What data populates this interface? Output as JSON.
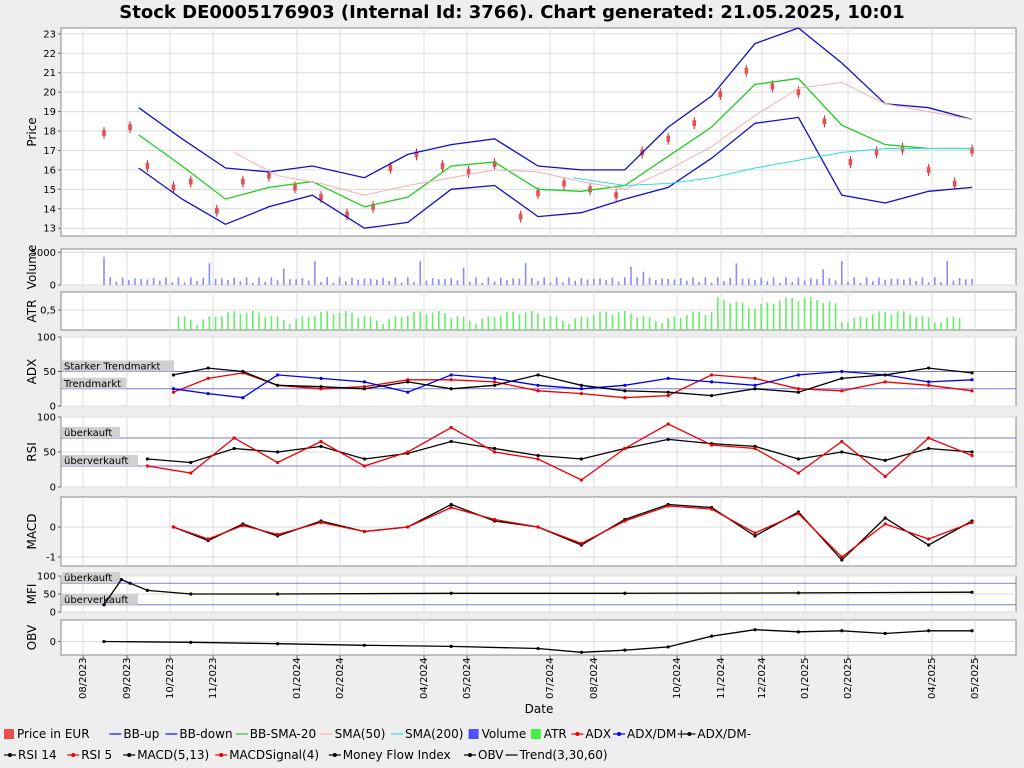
{
  "chart_data": {
    "type": "line",
    "title": "Stock DE0005176903 (Internal Id: 3766). Chart generated: 21.05.2025, 10:01",
    "xlabel": "Date",
    "x_ticks": [
      "08/2023",
      "09/2023",
      "10/2023",
      "11/2023",
      "01/2024",
      "02/2024",
      "04/2024",
      "05/2024",
      "07/2024",
      "08/2024",
      "10/2024",
      "11/2024",
      "12/2024",
      "01/2025",
      "02/2025",
      "04/2025",
      "05/2025"
    ],
    "panels": [
      {
        "key": "price",
        "ylabel": "Price",
        "ylim": [
          12.6,
          23.3
        ],
        "ticks": [
          13,
          14,
          15,
          16,
          17,
          18,
          19,
          20,
          21,
          22,
          23
        ]
      },
      {
        "key": "volume",
        "ylabel": "Volume",
        "ylim": [
          0,
          5500
        ],
        "ticks": [
          0,
          5000
        ]
      },
      {
        "key": "atr",
        "ylabel": "ATR",
        "ylim": [
          0,
          0.95
        ],
        "ticks": [
          0.5
        ],
        "tick_labels": [
          "0,5"
        ]
      },
      {
        "key": "adx",
        "ylabel": "ADX",
        "ylim": [
          0,
          100
        ],
        "ticks": [
          0,
          50,
          100
        ],
        "annotations": [
          {
            "text": "Starker Trendmarkt",
            "y": 50
          },
          {
            "text": "Trendmarkt",
            "y": 25
          }
        ]
      },
      {
        "key": "rsi",
        "ylabel": "RSI",
        "ylim": [
          0,
          100
        ],
        "ticks": [
          0,
          50,
          100
        ],
        "annotations": [
          {
            "text": "überkauft",
            "y": 70
          },
          {
            "text": "überverkauft",
            "y": 30
          }
        ]
      },
      {
        "key": "macd",
        "ylabel": "MACD",
        "ylim": [
          -1.3,
          1.0
        ],
        "ticks": [
          -1,
          0
        ]
      },
      {
        "key": "mfi",
        "ylabel": "MFI",
        "ylim": [
          0,
          100
        ],
        "ticks": [
          0,
          50,
          100
        ],
        "annotations": [
          {
            "text": "überkauft",
            "y": 80
          },
          {
            "text": "überverkauft",
            "y": 20
          }
        ]
      },
      {
        "key": "obv",
        "ylabel": "OBV",
        "ylim": [
          -25000,
          40000
        ],
        "ticks": [
          0
        ]
      }
    ],
    "series": [
      {
        "name": "Price in EUR",
        "panel": "price",
        "x": [
          0,
          3,
          5,
          8,
          10,
          13,
          16,
          19,
          22,
          25,
          28,
          31,
          33,
          36,
          39,
          42,
          45,
          48,
          50,
          53,
          56,
          59,
          62,
          65,
          68,
          71,
          74,
          77,
          80,
          83,
          86,
          89,
          92,
          95,
          98,
          100
        ],
        "values": [
          17.9,
          18.2,
          16.2,
          15.1,
          15.4,
          13.9,
          15.4,
          15.7,
          15.1,
          14.6,
          13.7,
          14.1,
          16.1,
          16.8,
          16.2,
          15.9,
          16.3,
          13.6,
          14.8,
          15.3,
          15.0,
          14.7,
          16.9,
          17.6,
          18.4,
          19.9,
          21.1,
          20.3,
          20.0,
          18.5,
          16.4,
          16.9,
          17.1,
          16.0,
          15.3,
          17.0
        ]
      },
      {
        "name": "BB-up",
        "panel": "price",
        "x": [
          4,
          9,
          14,
          19,
          24,
          30,
          35,
          40,
          45,
          50,
          55,
          60,
          65,
          70,
          75,
          80,
          85,
          90,
          95,
          100
        ],
        "values": [
          19.2,
          17.6,
          16.1,
          15.9,
          16.2,
          15.6,
          16.8,
          17.3,
          17.6,
          16.2,
          16.0,
          16.0,
          18.2,
          19.8,
          22.5,
          23.3,
          21.5,
          19.4,
          19.2,
          18.6
        ]
      },
      {
        "name": "BB-down",
        "panel": "price",
        "x": [
          4,
          9,
          14,
          19,
          24,
          30,
          35,
          40,
          45,
          50,
          55,
          60,
          65,
          70,
          75,
          80,
          85,
          90,
          95,
          100
        ],
        "values": [
          16.1,
          14.5,
          13.2,
          14.1,
          14.7,
          13.0,
          13.3,
          15.0,
          15.2,
          13.6,
          13.8,
          14.5,
          15.1,
          16.6,
          18.4,
          18.7,
          14.7,
          14.3,
          14.9,
          15.1
        ]
      },
      {
        "name": "BB-SMA-20",
        "panel": "price",
        "x": [
          4,
          9,
          14,
          19,
          24,
          30,
          35,
          40,
          45,
          50,
          55,
          60,
          65,
          70,
          75,
          80,
          85,
          90,
          95,
          100
        ],
        "values": [
          17.8,
          16.2,
          14.5,
          15.1,
          15.4,
          14.1,
          14.6,
          16.2,
          16.4,
          15.0,
          14.9,
          15.2,
          16.7,
          18.2,
          20.4,
          20.7,
          18.3,
          17.3,
          17.1,
          17.1
        ]
      },
      {
        "name": "SMA(50)",
        "panel": "price",
        "x": [
          15,
          20,
          25,
          30,
          35,
          40,
          45,
          50,
          55,
          60,
          65,
          70,
          75,
          80,
          85,
          90,
          95,
          100
        ],
        "values": [
          16.9,
          15.7,
          15.3,
          14.7,
          15.2,
          15.6,
          16.0,
          15.9,
          15.4,
          15.0,
          16.0,
          17.2,
          18.8,
          20.2,
          20.5,
          19.4,
          19.0,
          18.6
        ]
      },
      {
        "name": "SMA(200)",
        "panel": "price",
        "x": [
          54,
          60,
          65,
          70,
          75,
          80,
          85,
          90,
          95,
          100
        ],
        "values": [
          15.6,
          15.2,
          15.3,
          15.6,
          16.1,
          16.5,
          16.9,
          17.1,
          17.1,
          17.1
        ]
      },
      {
        "name": "ADX",
        "panel": "adx",
        "x": [
          8,
          12,
          16,
          20,
          25,
          30,
          35,
          40,
          45,
          50,
          55,
          60,
          65,
          70,
          75,
          80,
          85,
          90,
          95,
          100
        ],
        "values": [
          20,
          40,
          48,
          30,
          25,
          28,
          38,
          38,
          35,
          22,
          18,
          12,
          15,
          45,
          40,
          25,
          22,
          35,
          30,
          22
        ]
      },
      {
        "name": "ADX/DM+",
        "panel": "adx",
        "x": [
          8,
          12,
          16,
          20,
          25,
          30,
          35,
          40,
          45,
          50,
          55,
          60,
          65,
          70,
          75,
          80,
          85,
          90,
          95,
          100
        ],
        "values": [
          25,
          18,
          12,
          45,
          40,
          35,
          20,
          45,
          40,
          30,
          25,
          30,
          40,
          35,
          30,
          45,
          50,
          45,
          35,
          38
        ]
      },
      {
        "name": "ADX/DM-",
        "panel": "adx",
        "x": [
          8,
          12,
          16,
          20,
          25,
          30,
          35,
          40,
          45,
          50,
          55,
          60,
          65,
          70,
          75,
          80,
          85,
          90,
          95,
          100
        ],
        "values": [
          45,
          55,
          50,
          30,
          28,
          25,
          35,
          25,
          30,
          45,
          30,
          22,
          20,
          15,
          25,
          20,
          40,
          45,
          55,
          48
        ]
      },
      {
        "name": "RSI 14",
        "panel": "rsi",
        "x": [
          5,
          10,
          15,
          20,
          25,
          30,
          35,
          40,
          45,
          50,
          55,
          60,
          65,
          70,
          75,
          80,
          85,
          90,
          95,
          100
        ],
        "values": [
          40,
          35,
          55,
          50,
          58,
          40,
          48,
          65,
          55,
          45,
          40,
          55,
          68,
          62,
          58,
          40,
          50,
          38,
          55,
          50
        ]
      },
      {
        "name": "RSI 5",
        "panel": "rsi",
        "x": [
          5,
          10,
          15,
          20,
          25,
          30,
          35,
          40,
          45,
          50,
          55,
          60,
          65,
          70,
          75,
          80,
          85,
          90,
          95,
          100
        ],
        "values": [
          30,
          20,
          70,
          35,
          65,
          30,
          50,
          85,
          50,
          40,
          10,
          55,
          90,
          60,
          55,
          20,
          65,
          15,
          70,
          45
        ]
      },
      {
        "name": "MACD(5,13)",
        "panel": "macd",
        "x": [
          8,
          12,
          16,
          20,
          25,
          30,
          35,
          40,
          45,
          50,
          55,
          60,
          65,
          70,
          75,
          80,
          85,
          90,
          95,
          100
        ],
        "values": [
          0.0,
          -0.45,
          0.1,
          -0.3,
          0.2,
          -0.15,
          0.0,
          0.75,
          0.2,
          0.0,
          -0.6,
          0.25,
          0.75,
          0.65,
          -0.3,
          0.5,
          -1.1,
          0.3,
          -0.6,
          0.2
        ]
      },
      {
        "name": "MACDSignal(4)",
        "panel": "macd",
        "x": [
          8,
          12,
          16,
          20,
          25,
          30,
          35,
          40,
          45,
          50,
          55,
          60,
          65,
          70,
          75,
          80,
          85,
          90,
          95,
          100
        ],
        "values": [
          0.0,
          -0.4,
          0.05,
          -0.25,
          0.15,
          -0.15,
          0.0,
          0.65,
          0.25,
          0.0,
          -0.55,
          0.2,
          0.7,
          0.6,
          -0.2,
          0.45,
          -1.0,
          0.1,
          -0.4,
          0.15
        ]
      },
      {
        "name": "Money Flow Index",
        "panel": "mfi",
        "x": [
          0,
          2,
          3,
          5,
          10,
          20,
          40,
          60,
          80,
          100
        ],
        "values": [
          20,
          90,
          80,
          60,
          50,
          50,
          52,
          52,
          53,
          55
        ]
      },
      {
        "name": "OBV",
        "panel": "obv",
        "x": [
          0,
          10,
          20,
          30,
          40,
          50,
          55,
          60,
          65,
          70,
          75,
          80,
          85,
          90,
          95,
          100
        ],
        "values": [
          0,
          -1500,
          -4000,
          -7000,
          -9000,
          -13000,
          -20000,
          -16000,
          -10000,
          10000,
          22000,
          18000,
          20000,
          15000,
          20000,
          20000
        ]
      }
    ],
    "volume_bars_present": true,
    "atr_bars_present": true,
    "legend_position": "bottom",
    "legend": [
      {
        "label": "Price in EUR",
        "color": "#e85050",
        "kind": "box"
      },
      {
        "label": "BB-up",
        "color": "#1010c8",
        "kind": "line"
      },
      {
        "label": "BB-down",
        "color": "#1010c8",
        "kind": "line"
      },
      {
        "label": "BB-SMA-20",
        "color": "#22cc22",
        "kind": "line"
      },
      {
        "label": "SMA(50)",
        "color": "#f0b0b0",
        "kind": "line"
      },
      {
        "label": "SMA(200)",
        "color": "#30dddd",
        "kind": "line"
      },
      {
        "label": "Volume",
        "color": "#5050ff",
        "kind": "box"
      },
      {
        "label": "ATR",
        "color": "#44ee44",
        "kind": "box"
      },
      {
        "label": "ADX",
        "color": "#ee0000",
        "kind": "marker"
      },
      {
        "label": "ADX/DM+",
        "color": "#0000ee",
        "kind": "marker"
      },
      {
        "label": "ADX/DM-",
        "color": "#000000",
        "kind": "marker"
      },
      {
        "label": "RSI 14",
        "color": "#000000",
        "kind": "marker"
      },
      {
        "label": "RSI 5",
        "color": "#ee0000",
        "kind": "marker"
      },
      {
        "label": "MACD(5,13)",
        "color": "#000000",
        "kind": "marker"
      },
      {
        "label": "MACDSignal(4)",
        "color": "#ee0000",
        "kind": "marker"
      },
      {
        "label": "Money Flow Index",
        "color": "#000000",
        "kind": "marker"
      },
      {
        "label": "OBV",
        "color": "#000000",
        "kind": "marker"
      },
      {
        "label": "Trend(3,30,60)",
        "color": "#000000",
        "kind": "line"
      }
    ]
  }
}
